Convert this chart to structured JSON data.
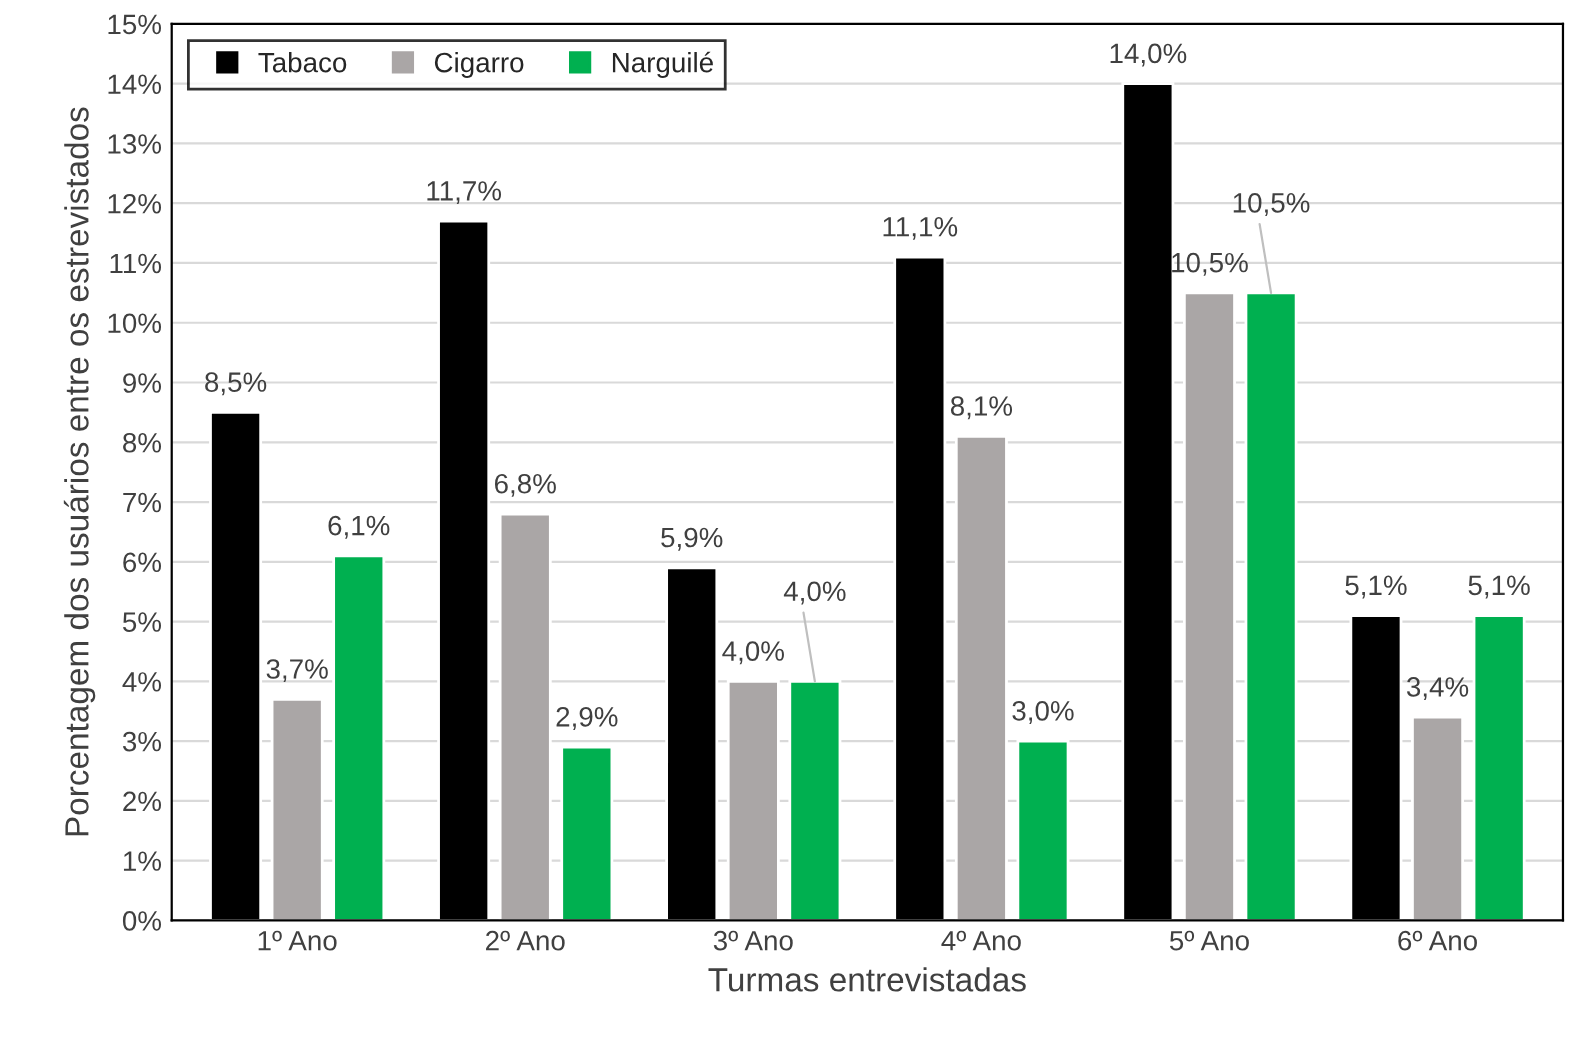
{
  "chart_data": {
    "type": "bar",
    "xlabel": "Turmas entrevistadas",
    "ylabel": "Porcentagem dos usuários entre os estrevistados",
    "categories": [
      "1º Ano",
      "2º Ano",
      "3º Ano",
      "4º Ano",
      "5º Ano",
      "6º Ano"
    ],
    "series": [
      {
        "name": "Tabaco",
        "color": "#000000",
        "values": [
          8.5,
          11.7,
          5.9,
          11.1,
          14.0,
          5.1
        ],
        "value_labels": [
          "8,5%",
          "11,7%",
          "5,9%",
          "11,1%",
          "14,0%",
          "5,1%"
        ]
      },
      {
        "name": "Cigarro",
        "color": "#aaa6a6",
        "values": [
          3.7,
          6.8,
          4.0,
          8.1,
          10.5,
          3.4
        ],
        "value_labels": [
          "3,7%",
          "6,8%",
          "4,0%",
          "8,1%",
          "10,5%",
          "3,4%"
        ]
      },
      {
        "name": "Narguilé",
        "color": "#00b050",
        "values": [
          6.1,
          2.9,
          4.0,
          3.0,
          10.5,
          5.1
        ],
        "value_labels": [
          "6,1%",
          "2,9%",
          "4,0%",
          "3,0%",
          "10,5%",
          "5,1%"
        ]
      }
    ],
    "ylim": [
      0,
      15
    ],
    "yticks": [
      {
        "value": 0,
        "label": "0%"
      },
      {
        "value": 1,
        "label": "1%"
      },
      {
        "value": 2,
        "label": "2%"
      },
      {
        "value": 3,
        "label": "3%"
      },
      {
        "value": 4,
        "label": "4%"
      },
      {
        "value": 5,
        "label": "5%"
      },
      {
        "value": 6,
        "label": "6%"
      },
      {
        "value": 7,
        "label": "7%"
      },
      {
        "value": 8,
        "label": "8%"
      },
      {
        "value": 9,
        "label": "9%"
      },
      {
        "value": 10,
        "label": "10%"
      },
      {
        "value": 11,
        "label": "11%"
      },
      {
        "value": 12,
        "label": "12%"
      },
      {
        "value": 13,
        "label": "13%"
      },
      {
        "value": 14,
        "label": "14%"
      },
      {
        "value": 15,
        "label": "15%"
      }
    ],
    "grid": "y",
    "legend": "top left"
  }
}
